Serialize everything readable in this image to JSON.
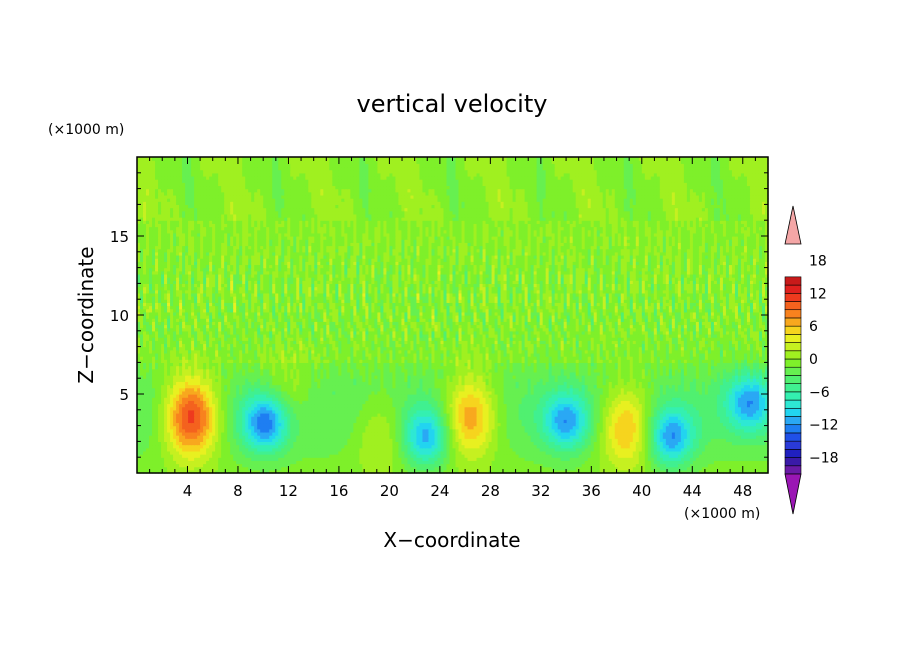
{
  "chart_data": {
    "type": "heatmap",
    "title": "vertical velocity",
    "xlabel": "X−coordinate",
    "ylabel": "Z−coordinate",
    "x_unit_label": "(×1000 m)",
    "y_unit_label": "(×1000 m)",
    "xlim": [
      0,
      50
    ],
    "ylim": [
      0,
      20
    ],
    "x_ticks": [
      4,
      8,
      12,
      16,
      20,
      24,
      28,
      32,
      36,
      40,
      44,
      48
    ],
    "y_ticks": [
      5,
      10,
      15
    ],
    "grid": false,
    "colorbar": {
      "placement": "right",
      "levels": [
        -21,
        -19.5,
        -18,
        -16.5,
        -15,
        -13.5,
        -12,
        -10.5,
        -9,
        -7.5,
        -6,
        -4.5,
        -3,
        -1.5,
        0,
        1.5,
        3,
        4.5,
        6,
        7.5,
        9,
        10.5,
        12,
        13.5,
        15,
        16.5,
        18,
        19.5,
        21
      ],
      "tick_labels": [
        "18",
        "12",
        "6",
        "0",
        "−6",
        "−12",
        "−18"
      ],
      "tick_values": [
        18,
        12,
        6,
        0,
        -6,
        -12,
        -18
      ],
      "colors": [
        "#6a1aa6",
        "#3a1aa8",
        "#2020c0",
        "#2a3ad8",
        "#2050e8",
        "#1e7ef2",
        "#2aa8f4",
        "#22d4f0",
        "#2ee8d4",
        "#34f0b0",
        "#40f090",
        "#50f070",
        "#66f050",
        "#7ef02a",
        "#a0f020",
        "#c6f020",
        "#e8f020",
        "#f6d41e",
        "#f8a81e",
        "#f8821e",
        "#f4621e",
        "#ee3a1e",
        "#e0201e",
        "#c81a1a"
      ],
      "over_color": "#f4a6a6",
      "under_color": "#9a16b4"
    },
    "features": [
      {
        "kind": "updraft",
        "x": 4.3,
        "z": 3.6,
        "peak": 14
      },
      {
        "kind": "downdraft",
        "x": 10.2,
        "z": 3.2,
        "peak": -11
      },
      {
        "kind": "updraft",
        "x": 26.4,
        "z": 3.6,
        "peak": 10
      },
      {
        "kind": "updraft",
        "x": 38.8,
        "z": 3.0,
        "peak": 9
      },
      {
        "kind": "updraft",
        "x": 19.3,
        "z": 2.6,
        "peak": 4
      },
      {
        "kind": "downdraft",
        "x": 22.9,
        "z": 2.3,
        "peak": -9
      },
      {
        "kind": "downdraft",
        "x": 34.0,
        "z": 3.3,
        "peak": -9
      },
      {
        "kind": "downdraft",
        "x": 42.3,
        "z": 2.3,
        "peak": -10
      },
      {
        "kind": "downdraft",
        "x": 48.5,
        "z": 4.5,
        "peak": -9
      },
      {
        "kind": "updraft",
        "x": 12.0,
        "z": 5.0,
        "peak": 3
      }
    ]
  }
}
